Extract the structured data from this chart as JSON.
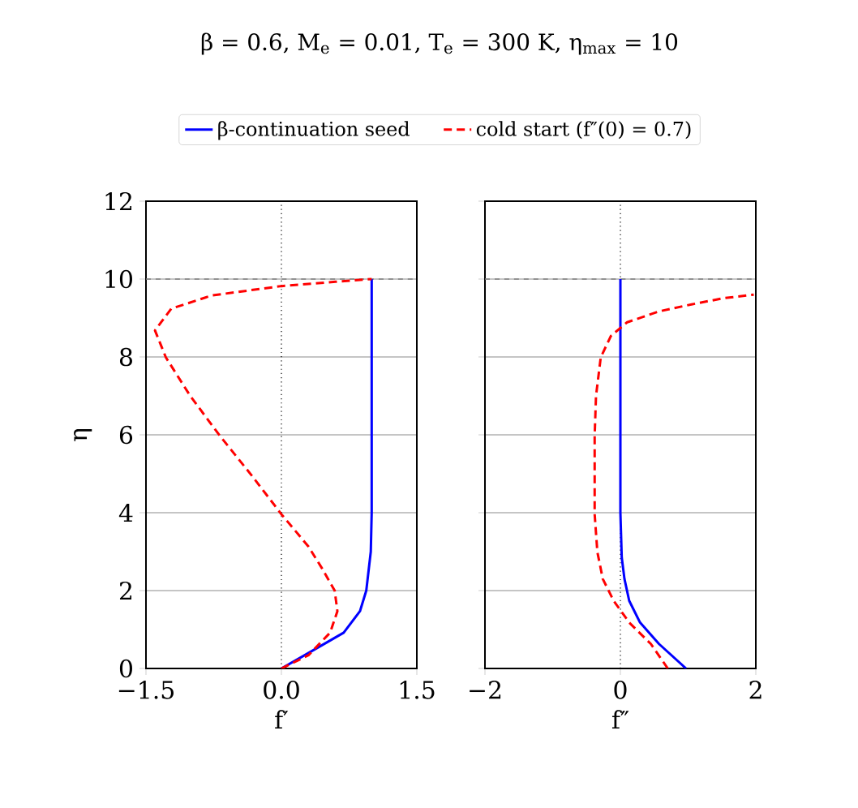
{
  "chart_data": [
    {
      "type": "line",
      "title": "β = 0.6,  M$_{e}$ = 0.01,  T$_{e}$ = 300 K,  η$_{max}$ = 10",
      "xlabel": "f′",
      "ylabel": "η",
      "xlim": [
        -1.5,
        1.5
      ],
      "xticks": [
        {
          "value": -1.5,
          "label": "−1.5"
        },
        {
          "value": 0,
          "label": "0.0"
        },
        {
          "value": 1.5,
          "label": "1.5"
        }
      ],
      "ylim": [
        0,
        12
      ],
      "yticks": [
        0,
        2,
        4,
        6,
        8,
        10,
        12
      ],
      "grid": "y",
      "legend": "top",
      "ref_lines": [
        {
          "axis": "y",
          "value": 10,
          "color": "#808080",
          "line_style": "dashed"
        },
        {
          "axis": "x",
          "value": 0,
          "color": "#000000",
          "line_style": "dotted"
        }
      ],
      "series": [
        {
          "name": "β-continuation seed",
          "color": "#0000ff",
          "line_style": "solid",
          "x": [
            0,
            0.25,
            0.69,
            0.87,
            0.94,
            0.99,
            1.0,
            1.0
          ],
          "values": [
            0,
            0.33,
            0.92,
            1.47,
            2.0,
            3.0,
            4.0,
            10
          ]
        },
        {
          "name": "cold start (f″(0) = 0.7)",
          "color": "#ff0000",
          "line_style": "dashed",
          "x": [
            0,
            0.3,
            0.54,
            0.62,
            0.59,
            0.45,
            0.3,
            0,
            -0.32,
            -0.68,
            -1.01,
            -1.28,
            -1.4,
            -1.22,
            -0.77,
            0,
            0.6,
            1.0
          ],
          "values": [
            0,
            0.34,
            0.92,
            1.47,
            2.0,
            2.57,
            3.13,
            3.96,
            4.93,
            5.97,
            7.0,
            7.99,
            8.68,
            9.24,
            9.58,
            9.82,
            9.93,
            10
          ]
        }
      ]
    },
    {
      "type": "line",
      "xlabel": "f″",
      "xlim": [
        -2,
        2
      ],
      "xticks": [
        {
          "value": -2,
          "label": "−2"
        },
        {
          "value": 0,
          "label": "0"
        },
        {
          "value": 2,
          "label": "2"
        }
      ],
      "ylim": [
        0,
        12
      ],
      "yticks": [
        0,
        2,
        4,
        6,
        8,
        10,
        12
      ],
      "grid": "y",
      "tick_labels": "x",
      "ref_lines": [
        {
          "axis": "y",
          "value": 10,
          "color": "#808080",
          "line_style": "dashed"
        },
        {
          "axis": "x",
          "value": 0,
          "color": "#000000",
          "line_style": "dotted"
        }
      ],
      "series": [
        {
          "color": "#0000ff",
          "line_style": "solid",
          "x": [
            0.97,
            0.57,
            0.29,
            0.13,
            0.06,
            0.02,
            0,
            0
          ],
          "values": [
            0,
            0.63,
            1.18,
            1.74,
            2.3,
            2.85,
            4.0,
            10
          ]
        },
        {
          "color": "#ff0000",
          "line_style": "dashed",
          "x": [
            0.7,
            0.45,
            0.13,
            -0.1,
            -0.26,
            -0.34,
            -0.38,
            -0.38,
            -0.36,
            -0.29,
            -0.14,
            0.1,
            0.57,
            1.05,
            1.53,
            1.97
          ],
          "values": [
            0,
            0.63,
            1.18,
            1.74,
            2.3,
            2.99,
            3.96,
            5.97,
            7.0,
            7.99,
            8.54,
            8.89,
            9.17,
            9.35,
            9.51,
            9.6
          ]
        }
      ]
    }
  ]
}
